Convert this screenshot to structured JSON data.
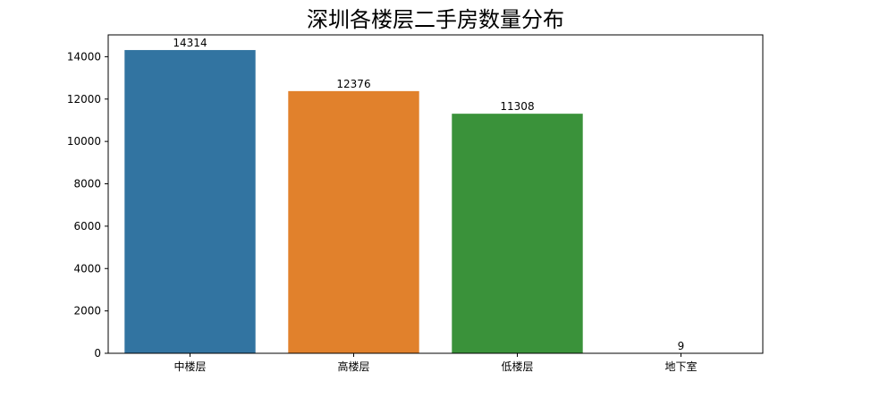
{
  "chart_data": {
    "type": "bar",
    "title": "深圳各楼层二手房数量分布",
    "xlabel": "",
    "ylabel": "",
    "categories": [
      "中楼层",
      "高楼层",
      "低楼层",
      "地下室"
    ],
    "values": [
      14314,
      12376,
      11308,
      9
    ],
    "data_labels": [
      "14314",
      "12376",
      "11308",
      "9"
    ],
    "ylim": [
      0,
      15030
    ],
    "yticks": [
      0,
      2000,
      4000,
      6000,
      8000,
      10000,
      12000,
      14000
    ],
    "ytick_labels": [
      "0",
      "2000",
      "4000",
      "6000",
      "8000",
      "10000",
      "12000",
      "14000"
    ],
    "colors": [
      "#3274a1",
      "#e1812c",
      "#3a923a",
      "#c03d3e"
    ],
    "grid": false,
    "legend": "none"
  }
}
